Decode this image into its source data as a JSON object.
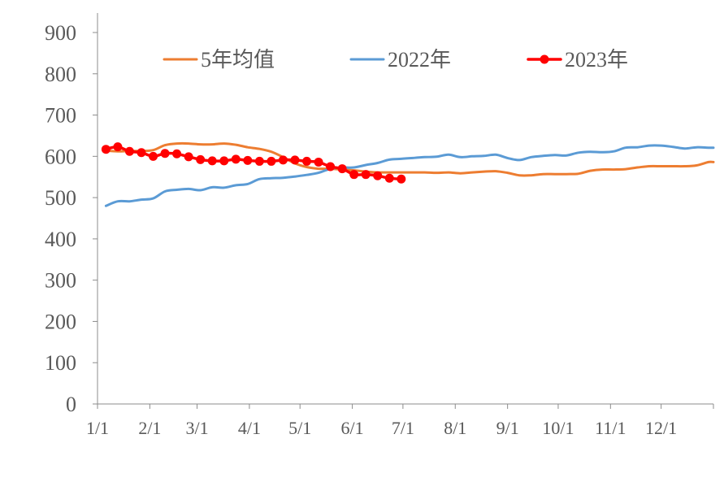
{
  "chart_data": {
    "type": "line",
    "title": "",
    "xlabel": "",
    "ylabel": "",
    "ylim": [
      0,
      900
    ],
    "yticks": [
      0,
      100,
      200,
      300,
      400,
      500,
      600,
      700,
      800,
      900
    ],
    "xlim": [
      1,
      366
    ],
    "xticks": [
      {
        "label": "1/1",
        "day": 1
      },
      {
        "label": "2/1",
        "day": 32
      },
      {
        "label": "3/1",
        "day": 60
      },
      {
        "label": "4/1",
        "day": 91
      },
      {
        "label": "5/1",
        "day": 121
      },
      {
        "label": "6/1",
        "day": 152
      },
      {
        "label": "7/1",
        "day": 182
      },
      {
        "label": "8/1",
        "day": 213
      },
      {
        "label": "9/1",
        "day": 244
      },
      {
        "label": "10/1",
        "day": 274
      },
      {
        "label": "11/1",
        "day": 305
      },
      {
        "label": "12/1",
        "day": 335
      }
    ],
    "grid": false,
    "legend_position": "top",
    "series": [
      {
        "name": "5年均值",
        "color": "#ED7D31",
        "markers": false,
        "points": [
          [
            6,
            614
          ],
          [
            13,
            612
          ],
          [
            20,
            613
          ],
          [
            27,
            613
          ],
          [
            34,
            615
          ],
          [
            41,
            627
          ],
          [
            48,
            631
          ],
          [
            55,
            631
          ],
          [
            62,
            629
          ],
          [
            69,
            629
          ],
          [
            76,
            631
          ],
          [
            83,
            628
          ],
          [
            90,
            622
          ],
          [
            97,
            618
          ],
          [
            104,
            611
          ],
          [
            111,
            598
          ],
          [
            118,
            583
          ],
          [
            125,
            574
          ],
          [
            132,
            570
          ],
          [
            139,
            570
          ],
          [
            146,
            568
          ],
          [
            153,
            566
          ],
          [
            160,
            563
          ],
          [
            167,
            561
          ],
          [
            174,
            561
          ],
          [
            181,
            561
          ],
          [
            188,
            561
          ],
          [
            195,
            561
          ],
          [
            202,
            560
          ],
          [
            209,
            561
          ],
          [
            216,
            559
          ],
          [
            223,
            561
          ],
          [
            230,
            563
          ],
          [
            237,
            564
          ],
          [
            244,
            560
          ],
          [
            251,
            554
          ],
          [
            258,
            554
          ],
          [
            265,
            557
          ],
          [
            272,
            557
          ],
          [
            279,
            557
          ],
          [
            286,
            558
          ],
          [
            293,
            565
          ],
          [
            300,
            568
          ],
          [
            307,
            568
          ],
          [
            314,
            569
          ],
          [
            321,
            573
          ],
          [
            328,
            576
          ],
          [
            335,
            576
          ],
          [
            342,
            576
          ],
          [
            349,
            576
          ],
          [
            356,
            578
          ],
          [
            363,
            586
          ],
          [
            366,
            586
          ]
        ]
      },
      {
        "name": "2022年",
        "color": "#5B9BD5",
        "markers": false,
        "points": [
          [
            6,
            480
          ],
          [
            13,
            491
          ],
          [
            20,
            491
          ],
          [
            27,
            495
          ],
          [
            34,
            498
          ],
          [
            41,
            515
          ],
          [
            48,
            519
          ],
          [
            55,
            521
          ],
          [
            62,
            518
          ],
          [
            69,
            525
          ],
          [
            76,
            524
          ],
          [
            83,
            530
          ],
          [
            90,
            533
          ],
          [
            97,
            545
          ],
          [
            104,
            547
          ],
          [
            111,
            548
          ],
          [
            118,
            551
          ],
          [
            125,
            555
          ],
          [
            132,
            560
          ],
          [
            139,
            570
          ],
          [
            146,
            573
          ],
          [
            153,
            573
          ],
          [
            160,
            579
          ],
          [
            167,
            584
          ],
          [
            174,
            592
          ],
          [
            181,
            594
          ],
          [
            188,
            596
          ],
          [
            195,
            598
          ],
          [
            202,
            599
          ],
          [
            209,
            604
          ],
          [
            216,
            598
          ],
          [
            223,
            600
          ],
          [
            230,
            601
          ],
          [
            237,
            604
          ],
          [
            244,
            596
          ],
          [
            251,
            591
          ],
          [
            258,
            598
          ],
          [
            265,
            601
          ],
          [
            272,
            603
          ],
          [
            279,
            602
          ],
          [
            286,
            609
          ],
          [
            293,
            611
          ],
          [
            300,
            610
          ],
          [
            307,
            612
          ],
          [
            314,
            621
          ],
          [
            321,
            622
          ],
          [
            328,
            626
          ],
          [
            335,
            626
          ],
          [
            342,
            623
          ],
          [
            349,
            619
          ],
          [
            356,
            622
          ],
          [
            363,
            621
          ],
          [
            366,
            621
          ]
        ]
      },
      {
        "name": "2023年",
        "color": "#FF0000",
        "markers": true,
        "points": [
          [
            6,
            617
          ],
          [
            13,
            623
          ],
          [
            20,
            612
          ],
          [
            27,
            609
          ],
          [
            34,
            600
          ],
          [
            41,
            607
          ],
          [
            48,
            606
          ],
          [
            55,
            599
          ],
          [
            62,
            592
          ],
          [
            69,
            589
          ],
          [
            76,
            589
          ],
          [
            83,
            593
          ],
          [
            90,
            590
          ],
          [
            97,
            588
          ],
          [
            104,
            588
          ],
          [
            111,
            591
          ],
          [
            118,
            591
          ],
          [
            125,
            588
          ],
          [
            132,
            586
          ],
          [
            139,
            575
          ],
          [
            146,
            570
          ],
          [
            153,
            556
          ],
          [
            160,
            556
          ],
          [
            167,
            553
          ],
          [
            174,
            547
          ],
          [
            181,
            545
          ]
        ]
      }
    ]
  }
}
